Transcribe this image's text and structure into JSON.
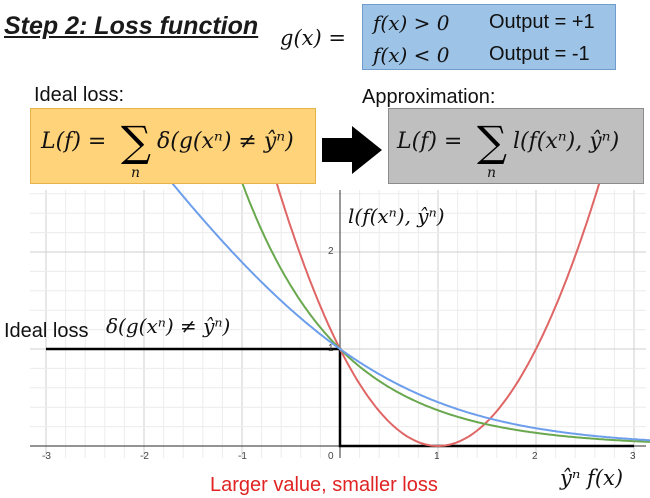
{
  "title": "Step 2: Loss function",
  "g_def": {
    "lhs": "g(x) =",
    "cases": [
      {
        "cond": "f(x) > 0",
        "output": "Output = +1"
      },
      {
        "cond": "f(x) < 0",
        "output": "Output = -1"
      }
    ]
  },
  "ideal_loss_label": "Ideal loss:",
  "approximation_label": "Approximation:",
  "ideal_formula": {
    "lhs": "L(f) =",
    "sigma": "∑",
    "sub": "n",
    "rhs": "δ(g(xⁿ) ≠ ŷⁿ)"
  },
  "approx_formula": {
    "lhs": "L(f) =",
    "sigma": "∑",
    "sub": "n",
    "rhs": "l(f(xⁿ), ŷⁿ)"
  },
  "curve_label": "l(f(xⁿ), ŷⁿ)",
  "ideal_loss_axis_label": "Ideal loss",
  "ideal_loss_axis_math": "δ(g(xⁿ) ≠ ŷⁿ)",
  "x_axis_label": "ŷⁿ f(x)",
  "bottom_caption": "Larger value, smaller loss",
  "colors": {
    "red": "#e06666",
    "green": "#6aa84f",
    "blue": "#6d9eeb",
    "step": "#000000",
    "arrow": "#000000"
  },
  "chart_data": {
    "type": "line",
    "x_ticks": [
      "-3",
      "-2",
      "-1",
      "0",
      "1",
      "2",
      "3"
    ],
    "y_ticks": [
      "1",
      "2"
    ],
    "xlim": [
      -3,
      3
    ],
    "ylim": [
      0,
      2.2
    ],
    "grid": true,
    "series": [
      {
        "kind": "step",
        "color": "#000000",
        "points": [
          [
            -3,
            1
          ],
          [
            0,
            1
          ],
          [
            0,
            0
          ],
          [
            3,
            0
          ]
        ]
      },
      {
        "kind": "curve",
        "fn": "square",
        "color": "#e06666"
      },
      {
        "kind": "curve",
        "fn": "exp",
        "color": "#6aa84f"
      },
      {
        "kind": "curve",
        "fn": "logistic",
        "color": "#6d9eeb"
      }
    ]
  }
}
